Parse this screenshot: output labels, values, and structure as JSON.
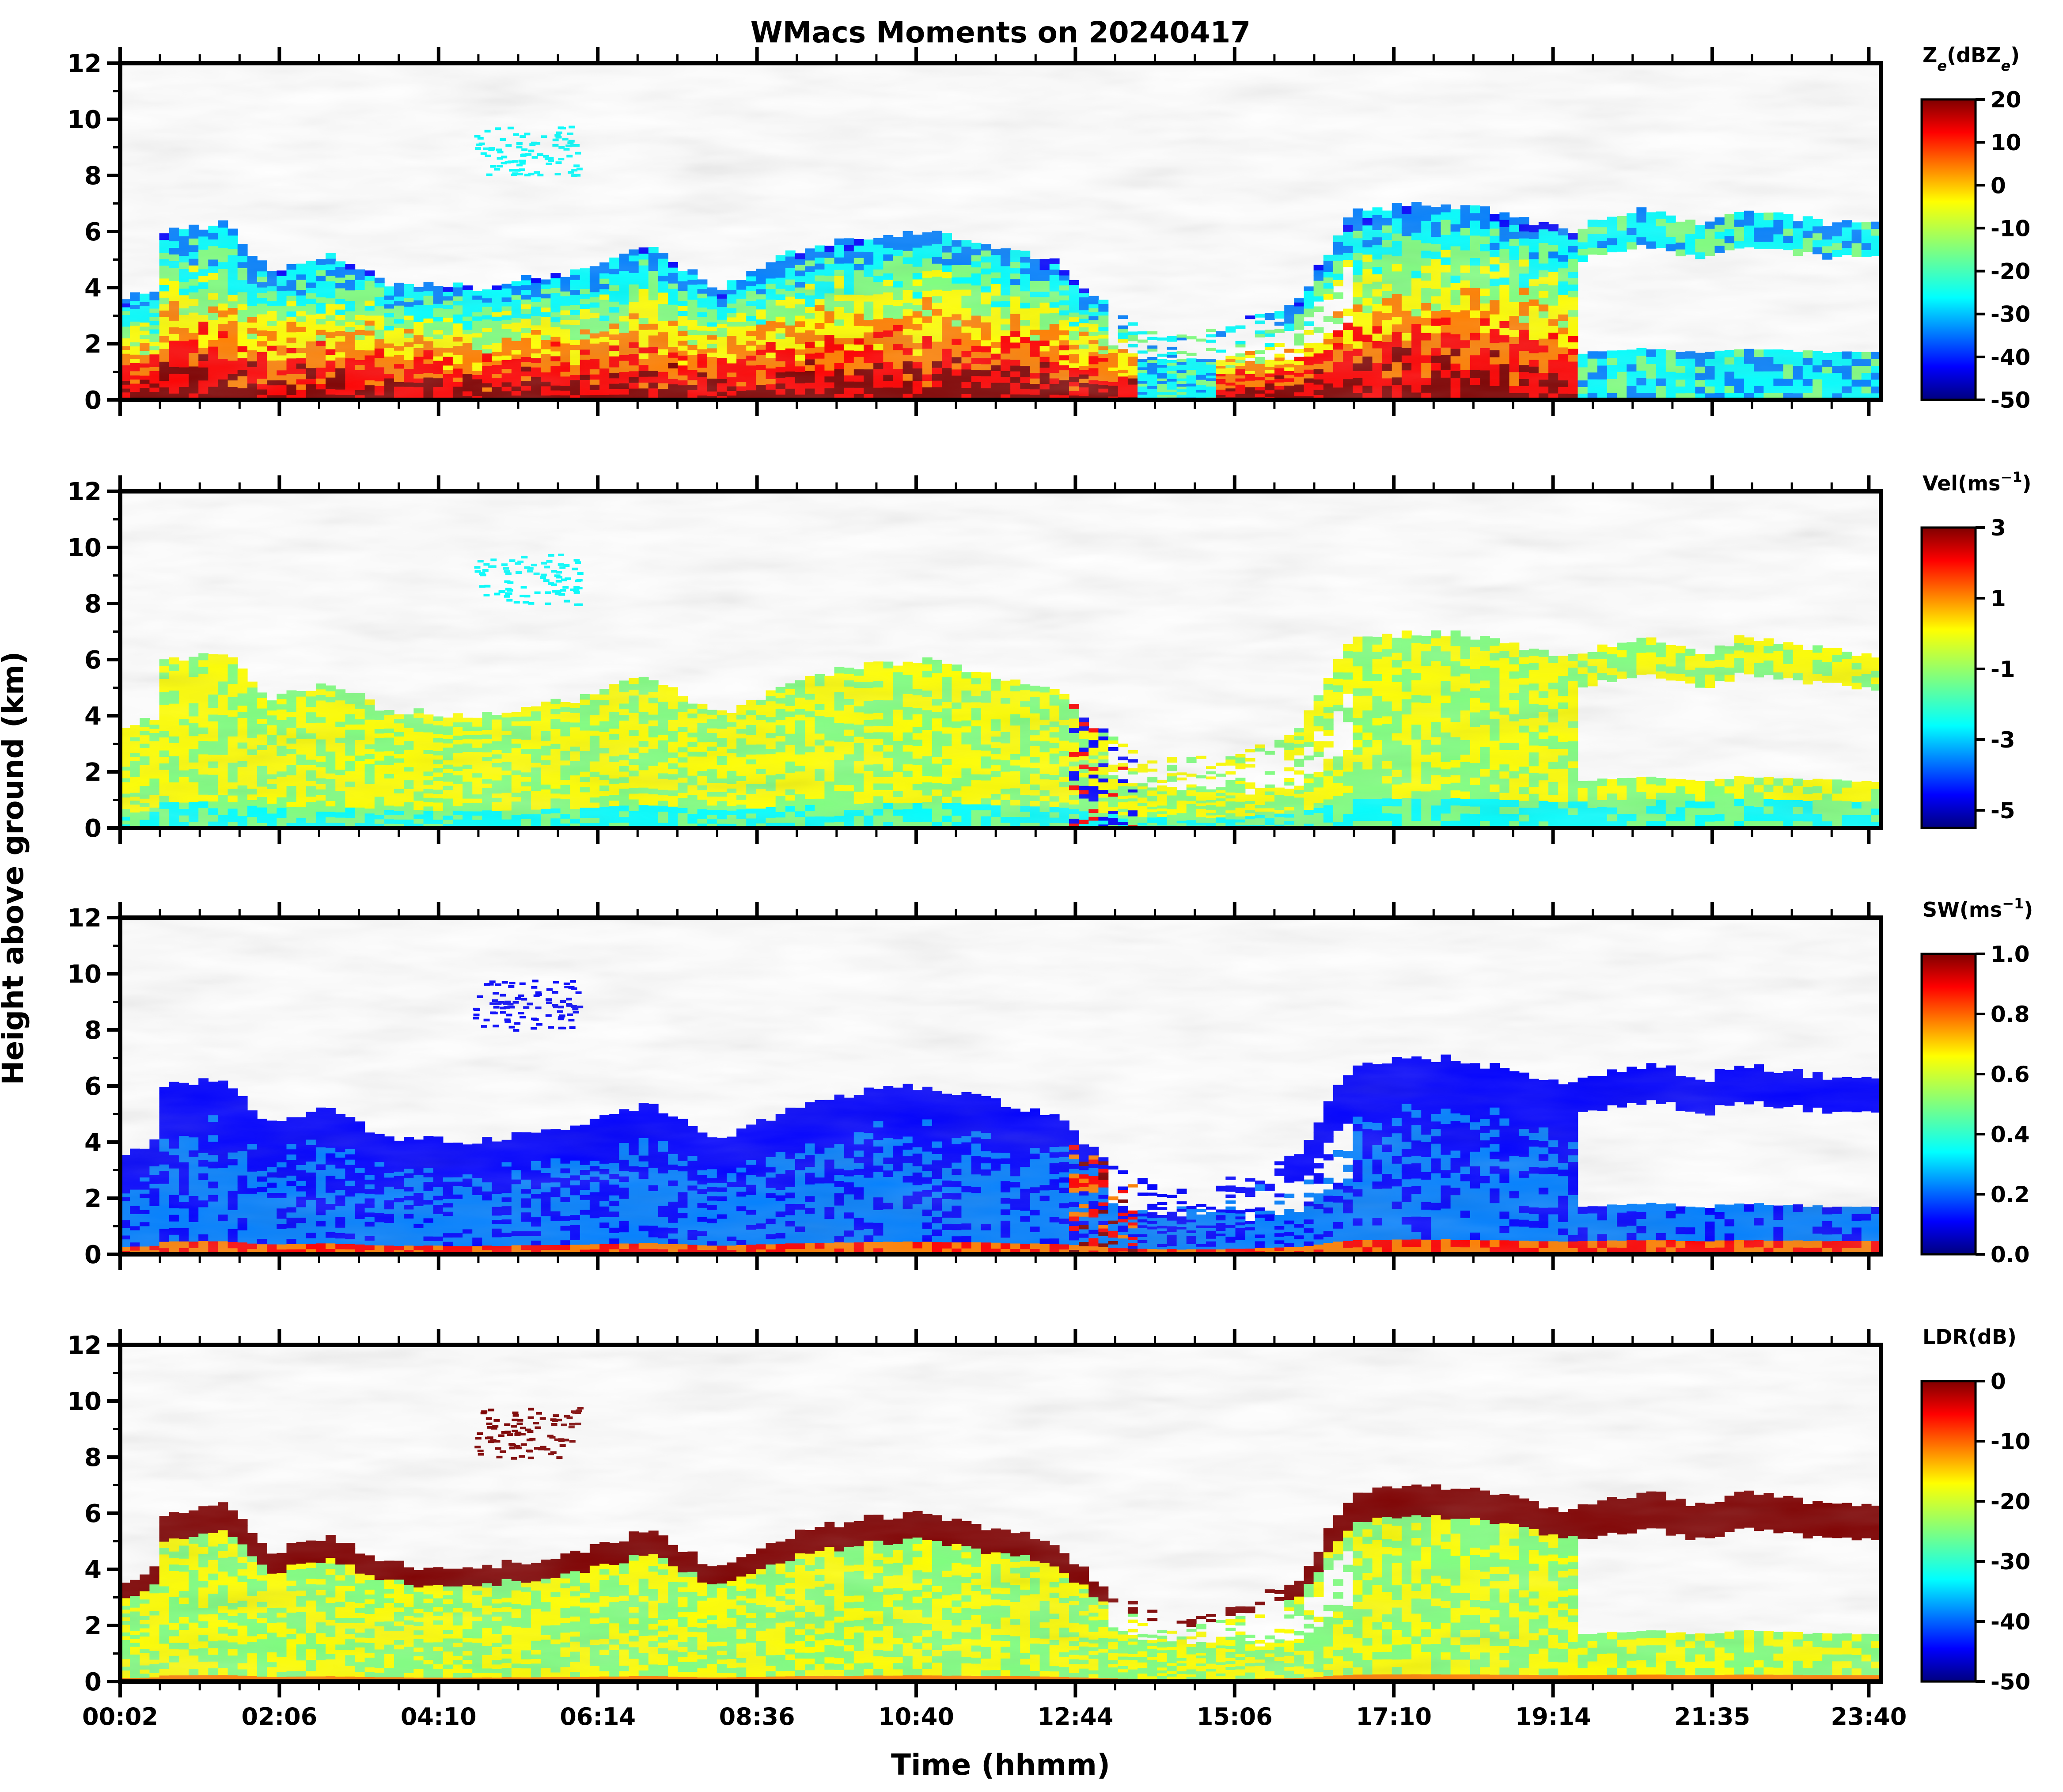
{
  "chart_data": {
    "type": "heatmap",
    "title": "WMacs Moments on 20240417",
    "xlabel": "Time (hhmm)",
    "ylabel": "Height above ground (km)",
    "x_ticks": [
      "00:02",
      "02:06",
      "04:10",
      "06:14",
      "08:36",
      "10:40",
      "12:44",
      "15:06",
      "17:10",
      "19:14",
      "21:35",
      "23:40"
    ],
    "y_ticks": [
      "0",
      "2",
      "4",
      "6",
      "8",
      "10",
      "12"
    ],
    "ylim": [
      0,
      12
    ],
    "colormap": "jet",
    "panels": [
      {
        "name": "reflectivity",
        "colorbar_label_base": "Z",
        "colorbar_label_sub": "e",
        "colorbar_label_rest": "(dBZ",
        "colorbar_label_sub2": "e",
        "colorbar_label_end": ")",
        "clim": [
          -50,
          20
        ],
        "ticks": [
          "20",
          "10",
          "0",
          "-10",
          "-20",
          "-30",
          "-40",
          "-50"
        ],
        "tick_values": [
          20,
          10,
          0,
          -10,
          -20,
          -30,
          -40,
          -50
        ]
      },
      {
        "name": "velocity",
        "colorbar_label_base": "Vel(ms",
        "colorbar_label_sup": "−1",
        "colorbar_label_end": ")",
        "clim": [
          -5.5,
          3
        ],
        "ticks": [
          "3",
          "1",
          "-1",
          "-3",
          "-5"
        ],
        "tick_values": [
          3,
          1,
          -1,
          -3,
          -5
        ]
      },
      {
        "name": "spectral-width",
        "colorbar_label_base": "SW(ms",
        "colorbar_label_sup": "−1",
        "colorbar_label_end": ")",
        "clim": [
          0,
          1
        ],
        "ticks": [
          "1.0",
          "0.8",
          "0.6",
          "0.4",
          "0.2",
          "0.0"
        ],
        "tick_values": [
          1,
          0.8,
          0.6,
          0.4,
          0.2,
          0
        ]
      },
      {
        "name": "ldr",
        "colorbar_label_base": "LDR(dB)",
        "clim": [
          -50,
          0
        ],
        "ticks": [
          "0",
          "-10",
          "-20",
          "-30",
          "-40",
          "-50"
        ],
        "tick_values": [
          0,
          -10,
          -20,
          -30,
          -40,
          -50
        ]
      }
    ]
  },
  "colors": {
    "jet": [
      "#00007f",
      "#0000ff",
      "#007fff",
      "#00ffff",
      "#7fff7f",
      "#ffff00",
      "#ff7f00",
      "#ff0000",
      "#7f0000"
    ],
    "axis": "#000000",
    "background": "#ffffff"
  }
}
